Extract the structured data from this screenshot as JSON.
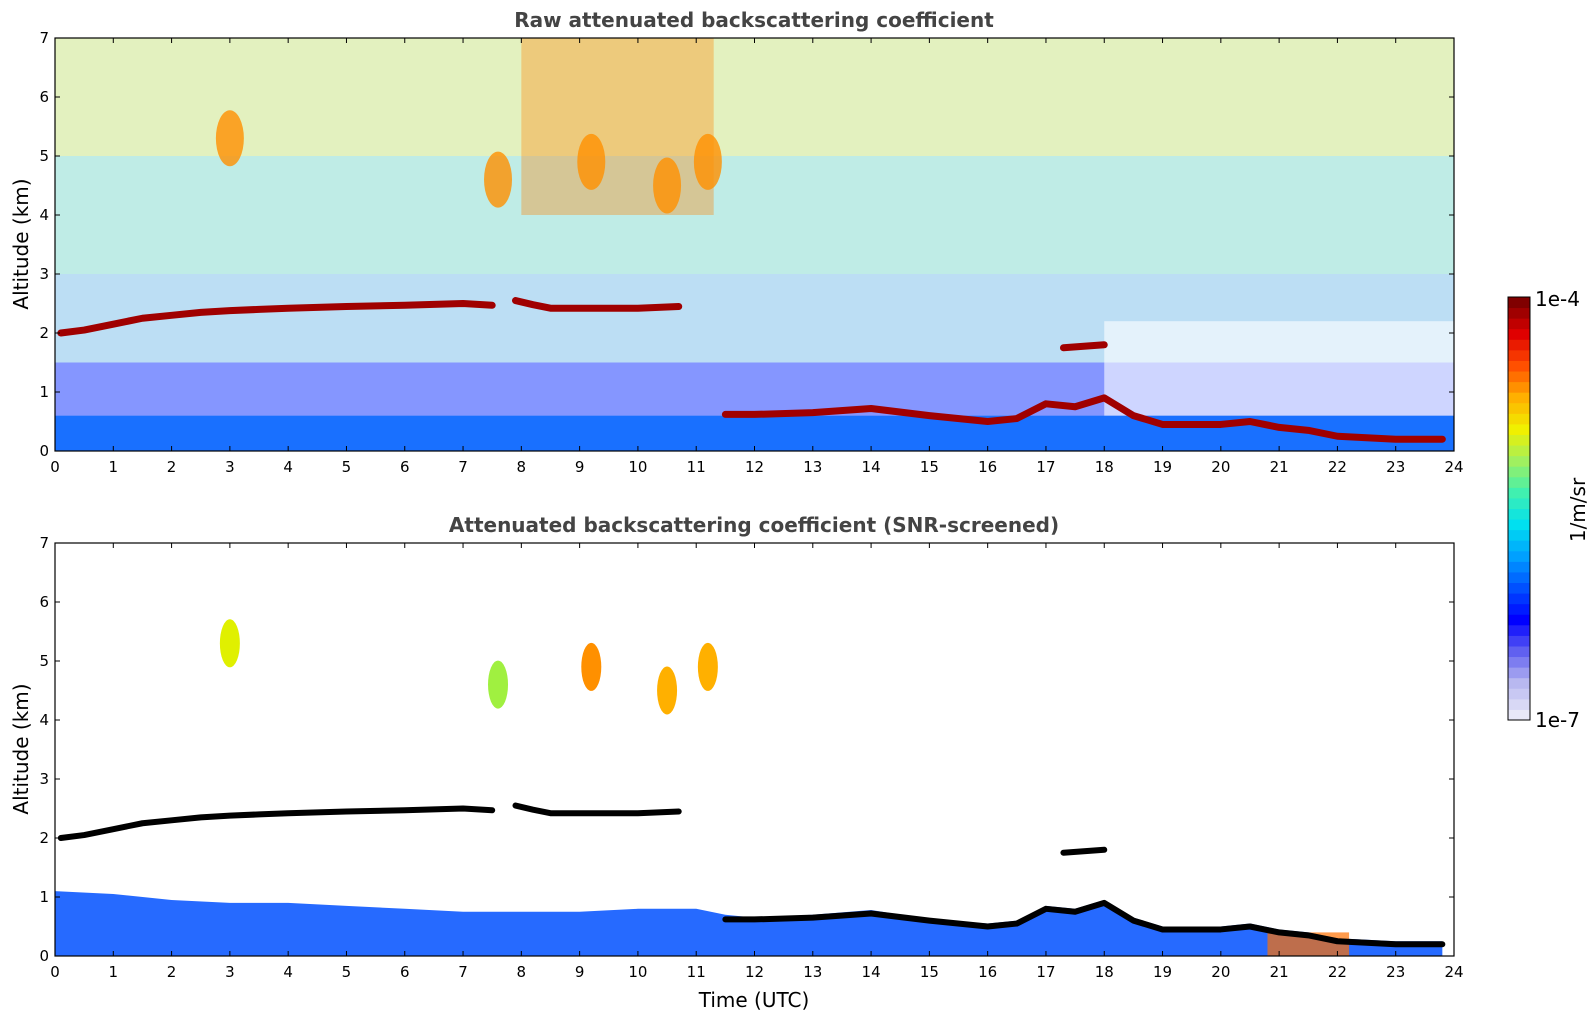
{
  "chart_data": [
    {
      "type": "heatmap",
      "title": "Raw attenuated backscattering coefficient",
      "xlabel": "",
      "ylabel": "Altitude (km)",
      "xlim": [
        0,
        24
      ],
      "ylim": [
        0,
        7
      ],
      "xticks": [
        0,
        1,
        2,
        3,
        4,
        5,
        6,
        7,
        8,
        9,
        10,
        11,
        12,
        13,
        14,
        15,
        16,
        17,
        18,
        19,
        20,
        21,
        22,
        23,
        24
      ],
      "yticks": [
        0,
        1,
        2,
        3,
        4,
        5,
        6,
        7
      ],
      "features": [
        {
          "name": "cloud-layer-morning",
          "t": [
            0.1,
            0.5,
            1,
            1.5,
            2,
            2.5,
            3,
            3.5,
            4,
            5,
            6,
            7,
            7.5
          ],
          "alt": [
            2.0,
            2.05,
            2.15,
            2.25,
            2.3,
            2.35,
            2.38,
            2.4,
            2.42,
            2.45,
            2.47,
            2.5,
            2.47
          ]
        },
        {
          "name": "cloud-layer-broken",
          "t": [
            7.9,
            8.2,
            8.5,
            9.4,
            10.0,
            10.7
          ],
          "alt": [
            2.55,
            2.48,
            2.42,
            2.42,
            2.42,
            2.45
          ]
        },
        {
          "name": "boundary-layer-top",
          "t": [
            11.5,
            12,
            13,
            14,
            15,
            16,
            16.5,
            17,
            17.5,
            18,
            18.5,
            19,
            20,
            20.5,
            21,
            21.5,
            22,
            23,
            23.8
          ],
          "alt": [
            0.62,
            0.62,
            0.65,
            0.72,
            0.6,
            0.5,
            0.55,
            0.8,
            0.75,
            0.9,
            0.6,
            0.45,
            0.45,
            0.5,
            0.4,
            0.35,
            0.25,
            0.2,
            0.2
          ]
        },
        {
          "name": "isolated-cloud",
          "t": [
            17.3,
            18.0
          ],
          "alt": [
            1.75,
            1.8
          ]
        },
        {
          "name": "mid-level-cloud",
          "t": [
            3.0,
            7.6,
            9.2,
            10.5,
            11.2
          ],
          "alt": [
            5.3,
            4.6,
            4.9,
            4.5,
            4.9
          ]
        }
      ]
    },
    {
      "type": "heatmap",
      "title": "Attenuated backscattering coefficient (SNR-screened)",
      "xlabel": "Time (UTC)",
      "ylabel": "Altitude (km)",
      "xlim": [
        0,
        24
      ],
      "ylim": [
        0,
        7
      ],
      "xticks": [
        0,
        1,
        2,
        3,
        4,
        5,
        6,
        7,
        8,
        9,
        10,
        11,
        12,
        13,
        14,
        15,
        16,
        17,
        18,
        19,
        20,
        21,
        22,
        23,
        24
      ],
      "yticks": [
        0,
        1,
        2,
        3,
        4,
        5,
        6,
        7
      ]
    }
  ],
  "colorbar": {
    "label": "1/m/sr",
    "max_label": "1e-4",
    "min_label": "1e-7",
    "colors": [
      "#e8e8f8",
      "#b8b8f0",
      "#6060f0",
      "#0000ff",
      "#0050ff",
      "#00a0ff",
      "#00e0f0",
      "#40f0b0",
      "#a0f060",
      "#f0f000",
      "#ffb000",
      "#ff5000",
      "#e00000",
      "#800000"
    ]
  }
}
